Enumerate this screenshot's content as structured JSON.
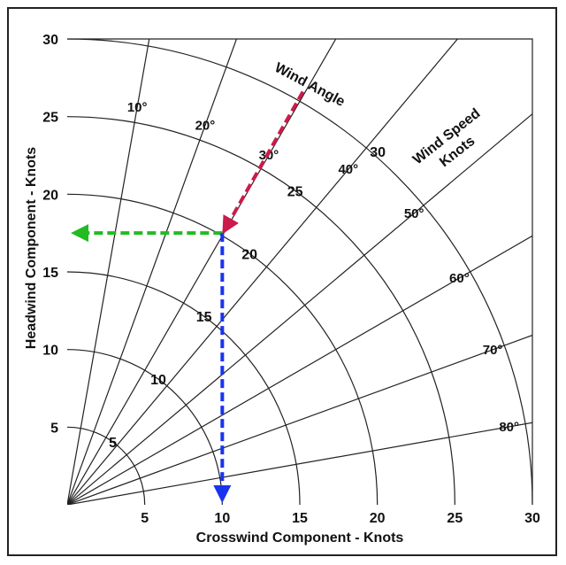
{
  "chart_data": {
    "type": "polar-wind-component",
    "xlabel": "Crosswind Component - Knots",
    "ylabel": "Headwind Component - Knots",
    "xlim": [
      0,
      30
    ],
    "ylim": [
      0,
      30
    ],
    "x_ticks": [
      "5",
      "10",
      "15",
      "20",
      "25",
      "30"
    ],
    "y_ticks": [
      "5",
      "10",
      "15",
      "20",
      "25",
      "30"
    ],
    "wind_speed_rings": [
      5,
      10,
      15,
      20,
      25,
      30
    ],
    "wind_speed_ring_labels": [
      "5",
      "10",
      "15",
      "20",
      "25",
      "30"
    ],
    "wind_angles_deg": [
      10,
      20,
      30,
      40,
      50,
      60,
      70,
      80
    ],
    "wind_angle_labels": [
      "10°",
      "20°",
      "30°",
      "40°",
      "50°",
      "60°",
      "70°",
      "80°"
    ],
    "annotations": {
      "wind_angle_title": "Wind Angle",
      "wind_speed_title_line1": "Wind Speed",
      "wind_speed_title_line2": "Knots"
    },
    "example": {
      "wind_from": [
        15.2,
        26.6
      ],
      "intersection": [
        10,
        17.5
      ],
      "headwind_component": 17.5,
      "crosswind_component": 10,
      "colors": {
        "wind_arrow": "#cc1a4a",
        "headwind_arrow": "#22bb22",
        "crosswind_arrow": "#1a33ee"
      }
    }
  }
}
